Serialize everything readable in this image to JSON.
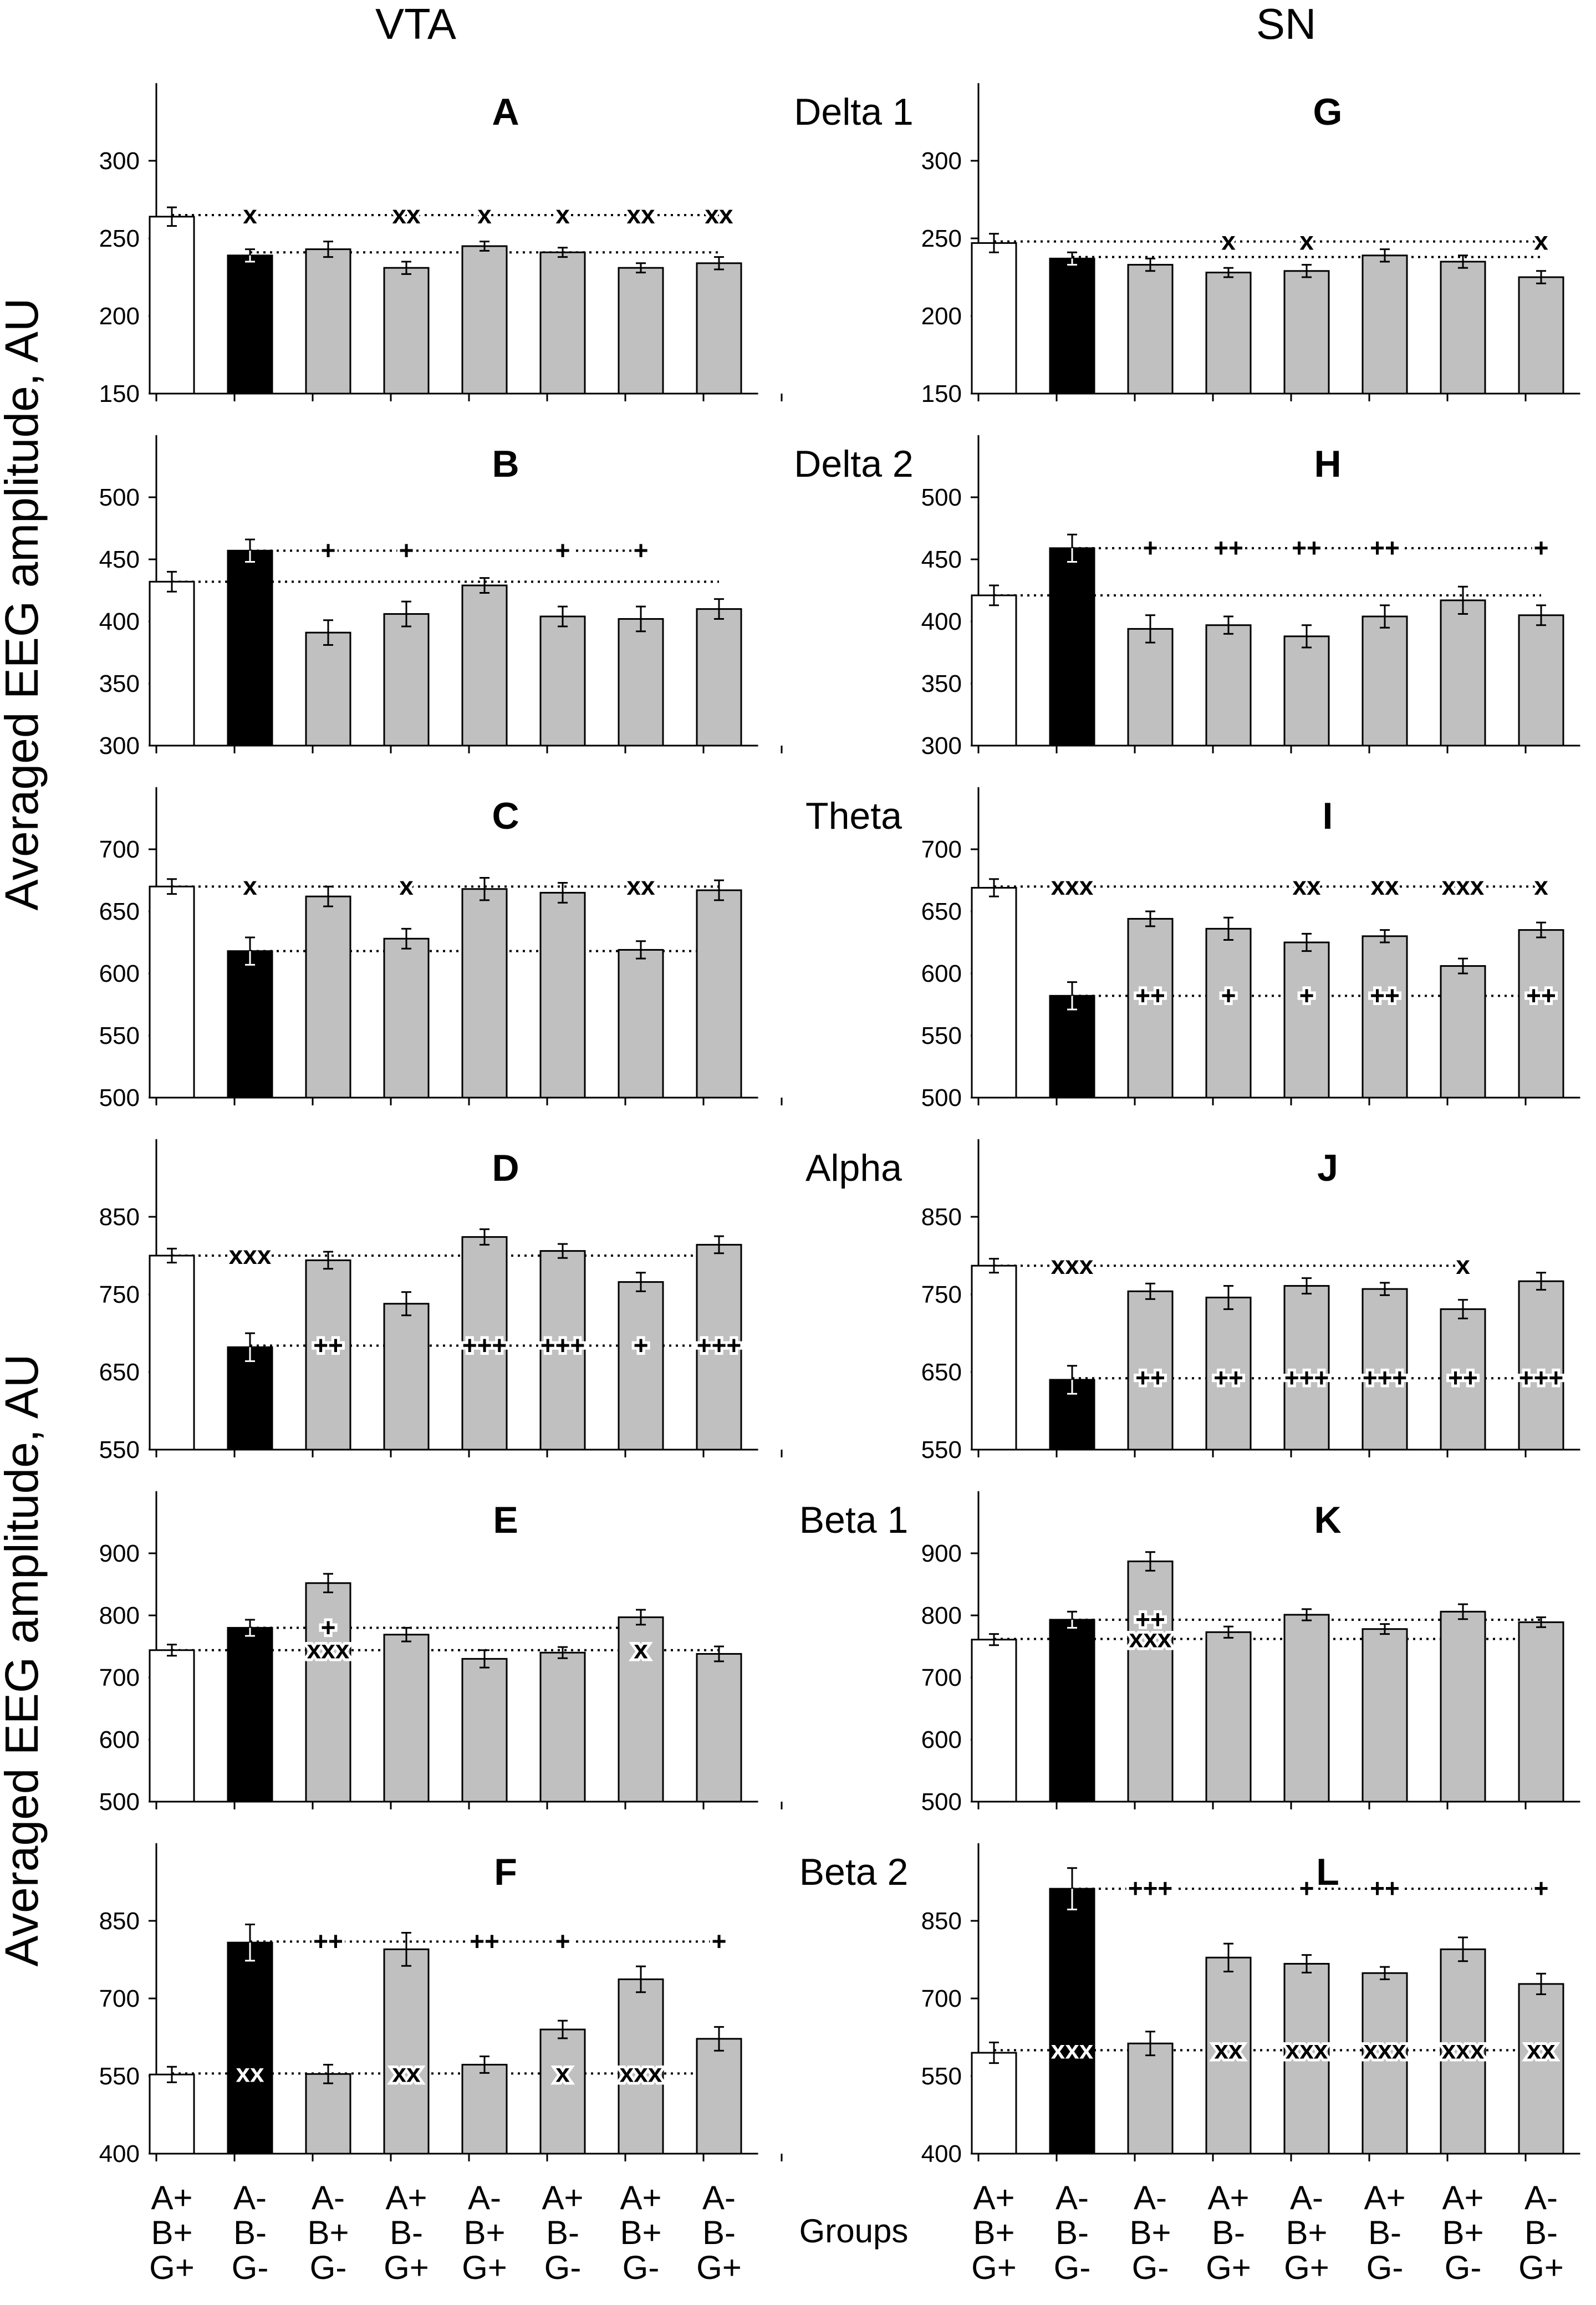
{
  "column_titles": [
    "VTA",
    "SN"
  ],
  "y_axis_label": "Averaged EEG amplitude, AU",
  "x_axis_label": "Groups",
  "group_labels": [
    [
      "A+",
      "B+",
      "G+"
    ],
    [
      "A-",
      "B-",
      "G-"
    ],
    [
      "A-",
      "B+",
      "G-"
    ],
    [
      "A+",
      "B-",
      "G+"
    ],
    [
      "A-",
      "B+",
      "G+"
    ],
    [
      "A+",
      "B-",
      "G-"
    ],
    [
      "A+",
      "B+",
      "G-"
    ],
    [
      "A-",
      "B-",
      "G+"
    ]
  ],
  "bar_colors": [
    "#ffffff",
    "#000000",
    "#c0c0c0",
    "#c0c0c0",
    "#c0c0c0",
    "#c0c0c0",
    "#c0c0c0",
    "#c0c0c0"
  ],
  "chart_data": [
    {
      "type": "bar",
      "panel": "A",
      "band": "Delta 1",
      "region": "VTA",
      "categories": [
        "A+B+G+",
        "A-B-G-",
        "A-B+G-",
        "A+B-G+",
        "A-B+G+",
        "A+B-G-",
        "A+B+G-",
        "A-B-G+"
      ],
      "ylim": [
        150,
        350
      ],
      "yticks": [
        150,
        200,
        250,
        300
      ],
      "values": [
        264,
        239,
        243,
        231,
        245,
        241,
        231,
        234
      ],
      "errors": [
        6,
        4,
        5,
        4,
        3,
        3,
        3,
        4
      ],
      "ref_lines": [
        {
          "y": 265,
          "from": 0,
          "to": 7,
          "labels": [
            {
              "bar": 1,
              "text": "x"
            },
            {
              "bar": 3,
              "text": "xx"
            },
            {
              "bar": 4,
              "text": "x"
            },
            {
              "bar": 5,
              "text": "x"
            },
            {
              "bar": 6,
              "text": "xx"
            },
            {
              "bar": 7,
              "text": "xx"
            }
          ]
        },
        {
          "y": 241,
          "from": 1,
          "to": 7,
          "labels": []
        }
      ]
    },
    {
      "type": "bar",
      "panel": "B",
      "band": "Delta 2",
      "region": "VTA",
      "categories": [
        "A+B+G+",
        "A-B-G-",
        "A-B+G-",
        "A+B-G+",
        "A-B+G+",
        "A+B-G-",
        "A+B+G-",
        "A-B-G+"
      ],
      "ylim": [
        300,
        550
      ],
      "yticks": [
        300,
        350,
        400,
        450,
        500
      ],
      "values": [
        432,
        457,
        391,
        406,
        429,
        404,
        402,
        410
      ],
      "errors": [
        8,
        9,
        10,
        10,
        6,
        8,
        10,
        8
      ],
      "ref_lines": [
        {
          "y": 457,
          "from": 1,
          "to": 6,
          "labels": [
            {
              "bar": 2,
              "text": "+"
            },
            {
              "bar": 3,
              "text": "+"
            },
            {
              "bar": 5,
              "text": "+"
            },
            {
              "bar": 6,
              "text": "+"
            }
          ]
        },
        {
          "y": 432,
          "from": 0,
          "to": 7,
          "labels": []
        }
      ]
    },
    {
      "type": "bar",
      "panel": "C",
      "band": "Theta",
      "region": "VTA",
      "categories": [
        "A+B+G+",
        "A-B-G-",
        "A-B+G-",
        "A+B-G+",
        "A-B+G+",
        "A+B-G-",
        "A+B+G-",
        "A-B-G+"
      ],
      "ylim": [
        500,
        750
      ],
      "yticks": [
        500,
        550,
        600,
        650,
        700
      ],
      "values": [
        670,
        618,
        662,
        628,
        668,
        665,
        619,
        667
      ],
      "errors": [
        6,
        11,
        8,
        8,
        9,
        8,
        7,
        8
      ],
      "ref_lines": [
        {
          "y": 670,
          "from": 0,
          "to": 7,
          "labels": [
            {
              "bar": 1,
              "text": "x"
            },
            {
              "bar": 3,
              "text": "x"
            },
            {
              "bar": 6,
              "text": "xx"
            }
          ]
        },
        {
          "y": 618,
          "from": 1,
          "to": 7,
          "labels": []
        }
      ]
    },
    {
      "type": "bar",
      "panel": "D",
      "band": "Alpha",
      "region": "VTA",
      "categories": [
        "A+B+G+",
        "A-B-G-",
        "A-B+G-",
        "A+B-G+",
        "A-B+G+",
        "A+B-G-",
        "A+B+G-",
        "A-B-G+"
      ],
      "ylim": [
        550,
        950
      ],
      "yticks": [
        550,
        650,
        750,
        850
      ],
      "values": [
        800,
        682,
        794,
        738,
        824,
        806,
        766,
        814
      ],
      "errors": [
        9,
        18,
        11,
        15,
        10,
        9,
        12,
        11
      ],
      "ref_lines": [
        {
          "y": 800,
          "from": 0,
          "to": 7,
          "labels": [
            {
              "bar": 1,
              "text": "xxx"
            }
          ]
        },
        {
          "y": 684,
          "from": 1,
          "to": 7,
          "labels": [
            {
              "bar": 2,
              "text": "++"
            },
            {
              "bar": 4,
              "text": "+++"
            },
            {
              "bar": 5,
              "text": "+++"
            },
            {
              "bar": 6,
              "text": "+"
            },
            {
              "bar": 7,
              "text": "+++"
            }
          ]
        }
      ]
    },
    {
      "type": "bar",
      "panel": "E",
      "band": "Beta 1",
      "region": "VTA",
      "categories": [
        "A+B+G+",
        "A-B-G-",
        "A-B+G-",
        "A+B-G+",
        "A-B+G+",
        "A+B-G-",
        "A+B+G-",
        "A-B-G+"
      ],
      "ylim": [
        500,
        1000
      ],
      "yticks": [
        500,
        600,
        700,
        800,
        900
      ],
      "values": [
        744,
        780,
        852,
        769,
        730,
        740,
        797,
        738
      ],
      "errors": [
        9,
        13,
        15,
        11,
        14,
        9,
        12,
        12
      ],
      "ref_lines": [
        {
          "y": 780,
          "from": 1,
          "to": 6,
          "labels": [
            {
              "bar": 2,
              "text": "+"
            }
          ]
        },
        {
          "y": 744,
          "from": 0,
          "to": 7,
          "labels": [
            {
              "bar": 2,
              "text": "xxx"
            },
            {
              "bar": 6,
              "text": "x"
            }
          ]
        }
      ]
    },
    {
      "type": "bar",
      "panel": "F",
      "band": "Beta 2",
      "region": "VTA",
      "categories": [
        "A+B+G+",
        "A-B-G-",
        "A-B+G-",
        "A+B-G+",
        "A-B+G+",
        "A+B-G-",
        "A+B+G-",
        "A-B-G+"
      ],
      "ylim": [
        400,
        1000
      ],
      "yticks": [
        400,
        550,
        700,
        850
      ],
      "values": [
        553,
        808,
        554,
        795,
        572,
        640,
        737,
        622
      ],
      "errors": [
        15,
        35,
        18,
        32,
        16,
        17,
        25,
        23
      ],
      "ref_lines": [
        {
          "y": 810,
          "from": 1,
          "to": 7,
          "labels": [
            {
              "bar": 2,
              "text": "++"
            },
            {
              "bar": 4,
              "text": "++"
            },
            {
              "bar": 5,
              "text": "+"
            },
            {
              "bar": 7,
              "text": "+"
            }
          ]
        },
        {
          "y": 555,
          "from": 0,
          "to": 7,
          "labels": [
            {
              "bar": 1,
              "text": "xx"
            },
            {
              "bar": 3,
              "text": "xx"
            },
            {
              "bar": 5,
              "text": "x"
            },
            {
              "bar": 6,
              "text": "xxx"
            }
          ]
        }
      ]
    },
    {
      "type": "bar",
      "panel": "G",
      "band": "Delta 1",
      "region": "SN",
      "categories": [
        "A+B+G+",
        "A-B-G-",
        "A-B+G-",
        "A+B-G+",
        "A-B+G+",
        "A+B-G-",
        "A+B+G-",
        "A-B-G+"
      ],
      "ylim": [
        150,
        350
      ],
      "yticks": [
        150,
        200,
        250,
        300
      ],
      "values": [
        247,
        237,
        233,
        228,
        229,
        239,
        235,
        225
      ],
      "errors": [
        6,
        4,
        4,
        3,
        4,
        4,
        4,
        4
      ],
      "ref_lines": [
        {
          "y": 248,
          "from": 0,
          "to": 7,
          "labels": [
            {
              "bar": 3,
              "text": "x"
            },
            {
              "bar": 4,
              "text": "x"
            },
            {
              "bar": 7,
              "text": "x"
            }
          ]
        },
        {
          "y": 238,
          "from": 1,
          "to": 7,
          "labels": []
        }
      ]
    },
    {
      "type": "bar",
      "panel": "H",
      "band": "Delta 2",
      "region": "SN",
      "categories": [
        "A+B+G+",
        "A-B-G-",
        "A-B+G-",
        "A+B-G+",
        "A-B+G+",
        "A+B-G-",
        "A+B+G-",
        "A-B-G+"
      ],
      "ylim": [
        300,
        550
      ],
      "yticks": [
        300,
        350,
        400,
        450,
        500
      ],
      "values": [
        421,
        459,
        394,
        397,
        388,
        404,
        417,
        405
      ],
      "errors": [
        8,
        11,
        11,
        7,
        9,
        9,
        11,
        8
      ],
      "ref_lines": [
        {
          "y": 459,
          "from": 1,
          "to": 7,
          "labels": [
            {
              "bar": 2,
              "text": "+"
            },
            {
              "bar": 3,
              "text": "++"
            },
            {
              "bar": 4,
              "text": "++"
            },
            {
              "bar": 5,
              "text": "++"
            },
            {
              "bar": 7,
              "text": "+"
            }
          ]
        },
        {
          "y": 421,
          "from": 0,
          "to": 7,
          "labels": []
        }
      ]
    },
    {
      "type": "bar",
      "panel": "I",
      "band": "Theta",
      "region": "SN",
      "categories": [
        "A+B+G+",
        "A-B-G-",
        "A-B+G-",
        "A+B-G+",
        "A-B+G+",
        "A+B-G-",
        "A+B+G-",
        "A-B-G+"
      ],
      "ylim": [
        500,
        750
      ],
      "yticks": [
        500,
        550,
        600,
        650,
        700
      ],
      "values": [
        669,
        582,
        644,
        636,
        625,
        630,
        606,
        635
      ],
      "errors": [
        7,
        11,
        6,
        9,
        7,
        5,
        6,
        6
      ],
      "ref_lines": [
        {
          "y": 670,
          "from": 0,
          "to": 7,
          "labels": [
            {
              "bar": 1,
              "text": "xxx"
            },
            {
              "bar": 4,
              "text": "xx"
            },
            {
              "bar": 5,
              "text": "xx"
            },
            {
              "bar": 6,
              "text": "xxx"
            },
            {
              "bar": 7,
              "text": "x"
            }
          ]
        },
        {
          "y": 582,
          "from": 1,
          "to": 7,
          "labels": [
            {
              "bar": 2,
              "text": "++"
            },
            {
              "bar": 3,
              "text": "+"
            },
            {
              "bar": 4,
              "text": "+"
            },
            {
              "bar": 5,
              "text": "++"
            },
            {
              "bar": 7,
              "text": "++"
            }
          ]
        }
      ]
    },
    {
      "type": "bar",
      "panel": "J",
      "band": "",
      "region": "SN",
      "categories": [
        "A+B+G+",
        "A-B-G-",
        "A-B+G-",
        "A+B-G+",
        "A-B+G+",
        "A+B-G-",
        "A+B+G-",
        "A-B-G+"
      ],
      "ylim": [
        550,
        950
      ],
      "yticks": [
        550,
        650,
        750,
        850
      ],
      "values": [
        787,
        640,
        754,
        746,
        761,
        757,
        731,
        767
      ],
      "errors": [
        9,
        18,
        10,
        15,
        10,
        8,
        12,
        11
      ],
      "ref_lines": [
        {
          "y": 787,
          "from": 0,
          "to": 6,
          "labels": [
            {
              "bar": 1,
              "text": "xxx"
            },
            {
              "bar": 6,
              "text": "x"
            }
          ]
        },
        {
          "y": 642,
          "from": 1,
          "to": 7,
          "labels": [
            {
              "bar": 2,
              "text": "++"
            },
            {
              "bar": 3,
              "text": "++"
            },
            {
              "bar": 4,
              "text": "+++"
            },
            {
              "bar": 5,
              "text": "+++"
            },
            {
              "bar": 6,
              "text": "++"
            },
            {
              "bar": 7,
              "text": "+++"
            }
          ]
        }
      ]
    },
    {
      "type": "bar",
      "panel": "K",
      "band": "",
      "region": "SN",
      "categories": [
        "A+B+G+",
        "A-B-G-",
        "A-B+G-",
        "A+B-G+",
        "A-B+G+",
        "A+B-G-",
        "A+B+G-",
        "A-B-G+"
      ],
      "ylim": [
        500,
        1000
      ],
      "yticks": [
        500,
        600,
        700,
        800,
        900
      ],
      "values": [
        761,
        793,
        887,
        773,
        801,
        778,
        806,
        789
      ],
      "errors": [
        9,
        13,
        15,
        9,
        9,
        8,
        12,
        8
      ],
      "ref_lines": [
        {
          "y": 793,
          "from": 1,
          "to": 7,
          "labels": [
            {
              "bar": 2,
              "text": "++"
            }
          ]
        },
        {
          "y": 762,
          "from": 0,
          "to": 7,
          "labels": [
            {
              "bar": 2,
              "text": "xxx"
            }
          ]
        }
      ]
    },
    {
      "type": "bar",
      "panel": "L",
      "band": "",
      "region": "SN",
      "categories": [
        "A+B+G+",
        "A-B-G-",
        "A-B+G-",
        "A+B-G+",
        "A-B+G+",
        "A+B-G-",
        "A+B+G-",
        "A-B-G+"
      ],
      "ylim": [
        400,
        1000
      ],
      "yticks": [
        400,
        550,
        700,
        850
      ],
      "values": [
        595,
        912,
        613,
        779,
        767,
        749,
        795,
        728
      ],
      "errors": [
        20,
        40,
        23,
        27,
        17,
        12,
        23,
        20
      ],
      "ref_lines": [
        {
          "y": 912,
          "from": 1,
          "to": 7,
          "labels": [
            {
              "bar": 2,
              "text": "+++"
            },
            {
              "bar": 4,
              "text": "+"
            },
            {
              "bar": 5,
              "text": "++"
            },
            {
              "bar": 7,
              "text": "+"
            }
          ]
        },
        {
          "y": 600,
          "from": 0,
          "to": 7,
          "labels": [
            {
              "bar": 1,
              "text": "xxx"
            },
            {
              "bar": 3,
              "text": "xx"
            },
            {
              "bar": 4,
              "text": "xxx"
            },
            {
              "bar": 5,
              "text": "xxx"
            },
            {
              "bar": 6,
              "text": "xxx"
            },
            {
              "bar": 7,
              "text": "xx"
            }
          ]
        }
      ]
    }
  ]
}
